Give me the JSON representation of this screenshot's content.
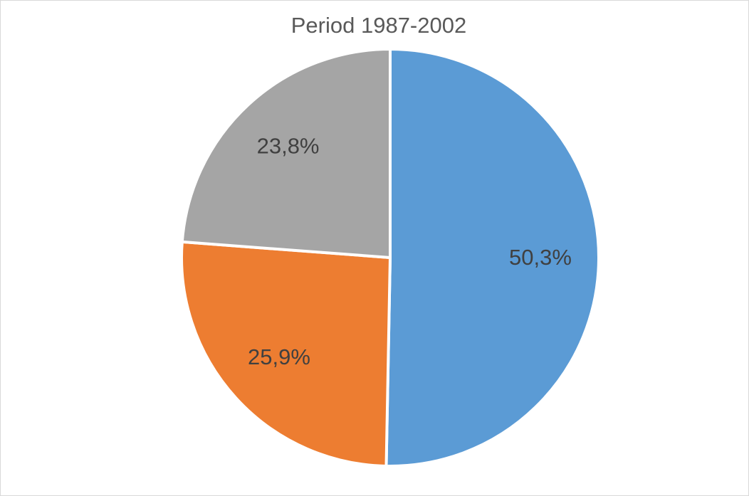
{
  "chart_data": {
    "type": "pie",
    "title": "Period 1987-2002",
    "values": [
      50.3,
      25.9,
      23.8
    ],
    "value_labels": [
      "50,3%",
      "25,9%",
      "23,8%"
    ],
    "colors": [
      "#5b9bd5",
      "#ed7d31",
      "#a5a5a5"
    ]
  }
}
